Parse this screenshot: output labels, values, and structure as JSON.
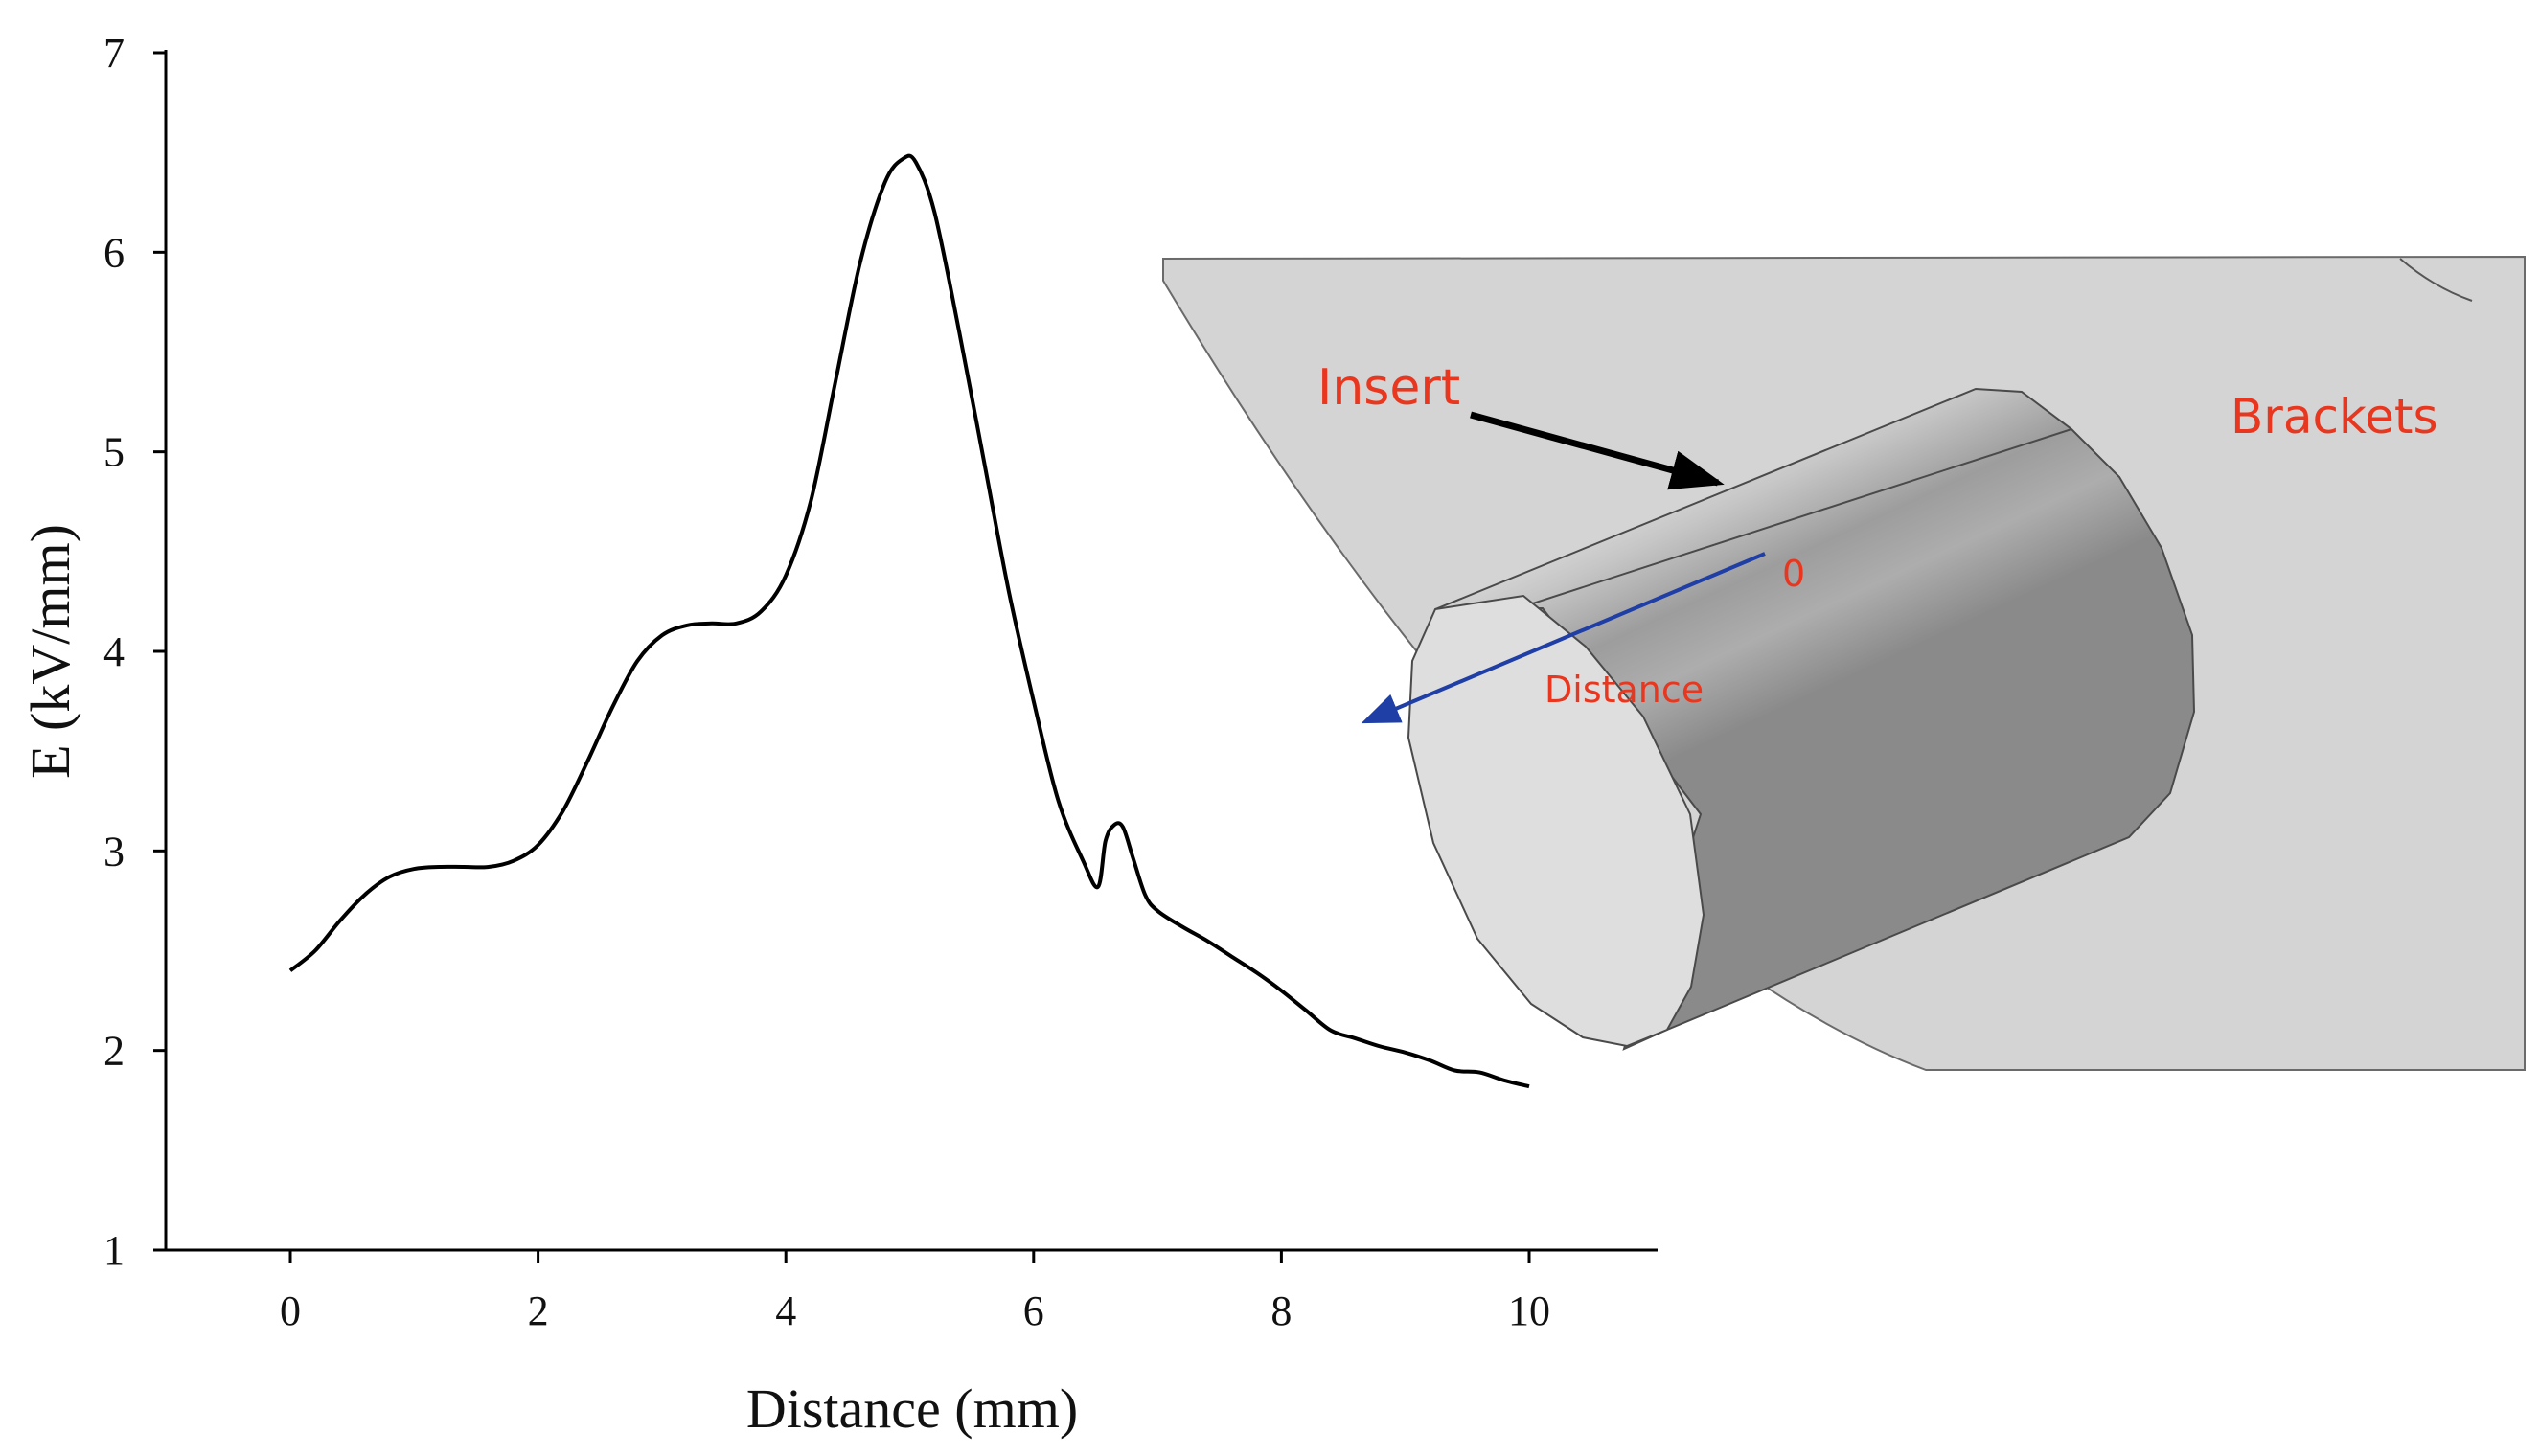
{
  "chart_data": {
    "type": "line",
    "xlabel": "Distance (mm)",
    "ylabel": "E (kV/mm)",
    "xlim": [
      -1,
      11.2
    ],
    "ylim": [
      1,
      7
    ],
    "xticks": [
      0,
      2,
      4,
      6,
      8,
      10
    ],
    "yticks": [
      1,
      2,
      3,
      4,
      5,
      6,
      7
    ],
    "grid": false,
    "series": [
      {
        "color": "#000000",
        "x": [
          0,
          0.2,
          0.4,
          0.6,
          0.8,
          1.0,
          1.2,
          1.4,
          1.6,
          1.8,
          2.0,
          2.2,
          2.4,
          2.6,
          2.8,
          3.0,
          3.2,
          3.4,
          3.6,
          3.8,
          4.0,
          4.2,
          4.4,
          4.6,
          4.8,
          4.95,
          5.05,
          5.2,
          5.4,
          5.6,
          5.8,
          6.0,
          6.2,
          6.4,
          6.52,
          6.58,
          6.65,
          6.72,
          6.8,
          6.9,
          7.0,
          7.2,
          7.4,
          7.6,
          7.8,
          8.0,
          8.2,
          8.4,
          8.6,
          8.8,
          9.0,
          9.2,
          9.4,
          9.6,
          9.8,
          10.0
        ],
        "y": [
          2.4,
          2.5,
          2.65,
          2.78,
          2.87,
          2.91,
          2.92,
          2.92,
          2.92,
          2.95,
          3.03,
          3.2,
          3.45,
          3.72,
          3.95,
          4.08,
          4.13,
          4.14,
          4.14,
          4.2,
          4.38,
          4.75,
          5.35,
          5.95,
          6.35,
          6.47,
          6.45,
          6.2,
          5.6,
          4.95,
          4.3,
          3.75,
          3.25,
          2.95,
          2.82,
          3.05,
          3.13,
          3.12,
          2.97,
          2.78,
          2.7,
          2.62,
          2.55,
          2.47,
          2.39,
          2.3,
          2.2,
          2.1,
          2.06,
          2.02,
          1.99,
          1.95,
          1.9,
          1.89,
          1.85,
          1.82
        ]
      }
    ]
  },
  "inset": {
    "labels": {
      "insert": "Insert",
      "brackets": "Brackets",
      "origin": "0",
      "distance": "Distance"
    },
    "colors": {
      "label": "#e8371e",
      "arrow": "#1f3fa6",
      "bracket_plate": "#d4d4d4",
      "cylinder_face": "#dedede"
    }
  }
}
